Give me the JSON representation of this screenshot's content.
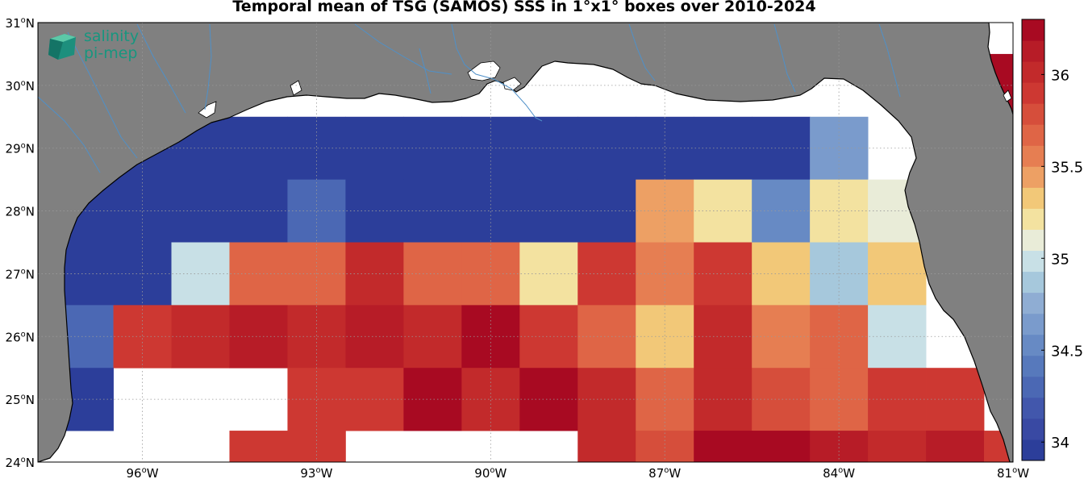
{
  "title": "Temporal mean of TSG (SAMOS) SSS in 1°x1° boxes over 2010-2024",
  "logo": {
    "line1": "salinity",
    "line2": "pi-mep"
  },
  "colors": {
    "land": "#808080",
    "ocean_nodata": "#ffffff",
    "coast": "#000000",
    "rivers": "#4f90c8",
    "grid": "#9a9a9a",
    "logo": "#17967f"
  },
  "axes": {
    "lon_range": [
      -97.8,
      -81
    ],
    "lat_range": [
      24,
      31
    ],
    "x_ticks": [
      {
        "v": -96,
        "label": "96°W"
      },
      {
        "v": -93,
        "label": "93°W"
      },
      {
        "v": -90,
        "label": "90°W"
      },
      {
        "v": -87,
        "label": "87°W"
      },
      {
        "v": -84,
        "label": "84°W"
      },
      {
        "v": -81,
        "label": "81°W"
      }
    ],
    "y_ticks": [
      {
        "v": 24,
        "label": "24°N"
      },
      {
        "v": 25,
        "label": "25°N"
      },
      {
        "v": 26,
        "label": "26°N"
      },
      {
        "v": 27,
        "label": "27°N"
      },
      {
        "v": 28,
        "label": "28°N"
      },
      {
        "v": 29,
        "label": "29°N"
      },
      {
        "v": 30,
        "label": "30°N"
      },
      {
        "v": 31,
        "label": "31°N"
      }
    ],
    "grid": "dotted"
  },
  "colorbar": {
    "range": [
      33.9,
      36.3
    ],
    "ticks": [
      {
        "v": 34,
        "label": "34"
      },
      {
        "v": 34.5,
        "label": "34.5"
      },
      {
        "v": 35,
        "label": "35"
      },
      {
        "v": 35.5,
        "label": "35.5"
      },
      {
        "v": 36,
        "label": "36"
      }
    ],
    "colors": [
      "#2c3e9a",
      "#3949a3",
      "#4257ac",
      "#4b68b4",
      "#5779bc",
      "#678ac4",
      "#7a9bcc",
      "#8fadd3",
      "#a6c8dc",
      "#c8e0e6",
      "#e9ecd8",
      "#f3e2a0",
      "#f2c878",
      "#eda064",
      "#e67e52",
      "#df6546",
      "#d64e3b",
      "#cd3832",
      "#c22a2b",
      "#b71c27",
      "#a80a22"
    ]
  },
  "chart_data": {
    "type": "heatmap",
    "variable": "SSS",
    "cell_size_deg": 1,
    "cells": [
      {
        "lon": -98,
        "lat": 29,
        "v": 33.95
      },
      {
        "lon": -97,
        "lat": 29,
        "v": 33.95
      },
      {
        "lon": -96,
        "lat": 29,
        "v": 33.95
      },
      {
        "lon": -95,
        "lat": 29,
        "v": 33.95
      },
      {
        "lon": -94,
        "lat": 29,
        "v": 33.95
      },
      {
        "lon": -93,
        "lat": 29,
        "v": 33.95
      },
      {
        "lon": -92,
        "lat": 29,
        "v": 33.95
      },
      {
        "lon": -91,
        "lat": 29,
        "v": 33.95
      },
      {
        "lon": -90,
        "lat": 29,
        "v": 33.95
      },
      {
        "lon": -89,
        "lat": 29,
        "v": 33.95
      },
      {
        "lon": -88,
        "lat": 29,
        "v": 33.95
      },
      {
        "lon": -87,
        "lat": 29,
        "v": 33.95
      },
      {
        "lon": -86,
        "lat": 29,
        "v": 33.95
      },
      {
        "lon": -85,
        "lat": 29,
        "v": 33.95
      },
      {
        "lon": -84,
        "lat": 29,
        "v": 34.6
      },
      {
        "lon": -98,
        "lat": 28,
        "v": 33.95
      },
      {
        "lon": -97,
        "lat": 28,
        "v": 33.95
      },
      {
        "lon": -96,
        "lat": 28,
        "v": 33.95
      },
      {
        "lon": -95,
        "lat": 28,
        "v": 33.95
      },
      {
        "lon": -94,
        "lat": 28,
        "v": 33.95
      },
      {
        "lon": -93,
        "lat": 28,
        "v": 34.25
      },
      {
        "lon": -92,
        "lat": 28,
        "v": 33.95
      },
      {
        "lon": -91,
        "lat": 28,
        "v": 33.95
      },
      {
        "lon": -90,
        "lat": 28,
        "v": 33.95
      },
      {
        "lon": -89,
        "lat": 28,
        "v": 33.95
      },
      {
        "lon": -88,
        "lat": 28,
        "v": 33.95
      },
      {
        "lon": -87,
        "lat": 28,
        "v": 35.45
      },
      {
        "lon": -86,
        "lat": 28,
        "v": 35.25
      },
      {
        "lon": -85,
        "lat": 28,
        "v": 34.55
      },
      {
        "lon": -84,
        "lat": 28,
        "v": 35.25
      },
      {
        "lon": -83,
        "lat": 28,
        "v": 35.05
      },
      {
        "lon": -98,
        "lat": 27,
        "v": 33.95
      },
      {
        "lon": -97,
        "lat": 27,
        "v": 33.95
      },
      {
        "lon": -96,
        "lat": 27,
        "v": 33.95
      },
      {
        "lon": -95,
        "lat": 27,
        "v": 35.0
      },
      {
        "lon": -94,
        "lat": 27,
        "v": 35.7
      },
      {
        "lon": -93,
        "lat": 27,
        "v": 35.7
      },
      {
        "lon": -92,
        "lat": 27,
        "v": 36.0
      },
      {
        "lon": -91,
        "lat": 27,
        "v": 35.7
      },
      {
        "lon": -90,
        "lat": 27,
        "v": 35.7
      },
      {
        "lon": -89,
        "lat": 27,
        "v": 35.2
      },
      {
        "lon": -88,
        "lat": 27,
        "v": 35.85
      },
      {
        "lon": -87,
        "lat": 27,
        "v": 35.6
      },
      {
        "lon": -86,
        "lat": 27,
        "v": 35.95
      },
      {
        "lon": -85,
        "lat": 27,
        "v": 35.35
      },
      {
        "lon": -84,
        "lat": 27,
        "v": 34.85
      },
      {
        "lon": -83,
        "lat": 27,
        "v": 35.35
      },
      {
        "lon": -98,
        "lat": 26,
        "v": 33.95
      },
      {
        "lon": -97,
        "lat": 26,
        "v": 34.3
      },
      {
        "lon": -96,
        "lat": 26,
        "v": 35.85
      },
      {
        "lon": -95,
        "lat": 26,
        "v": 36.05
      },
      {
        "lon": -94,
        "lat": 26,
        "v": 36.15
      },
      {
        "lon": -93,
        "lat": 26,
        "v": 36.05
      },
      {
        "lon": -92,
        "lat": 26,
        "v": 36.15
      },
      {
        "lon": -91,
        "lat": 26,
        "v": 36.05
      },
      {
        "lon": -90,
        "lat": 26,
        "v": 36.3
      },
      {
        "lon": -89,
        "lat": 26,
        "v": 35.95
      },
      {
        "lon": -88,
        "lat": 26,
        "v": 35.65
      },
      {
        "lon": -87,
        "lat": 26,
        "v": 35.35
      },
      {
        "lon": -86,
        "lat": 26,
        "v": 36.0
      },
      {
        "lon": -85,
        "lat": 26,
        "v": 35.55
      },
      {
        "lon": -84,
        "lat": 26,
        "v": 35.7
      },
      {
        "lon": -83,
        "lat": 26,
        "v": 35.0
      },
      {
        "lon": -97,
        "lat": 25,
        "v": 33.95
      },
      {
        "lon": -93,
        "lat": 25,
        "v": 35.85
      },
      {
        "lon": -92,
        "lat": 25,
        "v": 35.95
      },
      {
        "lon": -91,
        "lat": 25,
        "v": 36.3
      },
      {
        "lon": -90,
        "lat": 25,
        "v": 36.05
      },
      {
        "lon": -89,
        "lat": 25,
        "v": 36.3
      },
      {
        "lon": -88,
        "lat": 25,
        "v": 36.0
      },
      {
        "lon": -87,
        "lat": 25,
        "v": 35.65
      },
      {
        "lon": -86,
        "lat": 25,
        "v": 36.05
      },
      {
        "lon": -85,
        "lat": 25,
        "v": 35.8
      },
      {
        "lon": -84,
        "lat": 25,
        "v": 35.65
      },
      {
        "lon": -83,
        "lat": 25,
        "v": 35.9
      },
      {
        "lon": -82,
        "lat": 25,
        "v": 35.85
      },
      {
        "lon": -94,
        "lat": 24,
        "v": 35.9
      },
      {
        "lon": -93,
        "lat": 24,
        "v": 35.9
      },
      {
        "lon": -88,
        "lat": 24,
        "v": 36.0
      },
      {
        "lon": -87,
        "lat": 24,
        "v": 35.8
      },
      {
        "lon": -86,
        "lat": 24,
        "v": 36.3
      },
      {
        "lon": -85,
        "lat": 24,
        "v": 36.3
      },
      {
        "lon": -84,
        "lat": 24,
        "v": 36.15
      },
      {
        "lon": -83,
        "lat": 24,
        "v": 36.05
      },
      {
        "lon": -82,
        "lat": 24,
        "v": 36.15
      },
      {
        "lon": -81,
        "lat": 24,
        "v": 35.85
      },
      {
        "lon": -81,
        "lat": 30,
        "v": 36.2
      },
      {
        "lon": -81,
        "lat": 29,
        "v": 36.0
      }
    ]
  }
}
